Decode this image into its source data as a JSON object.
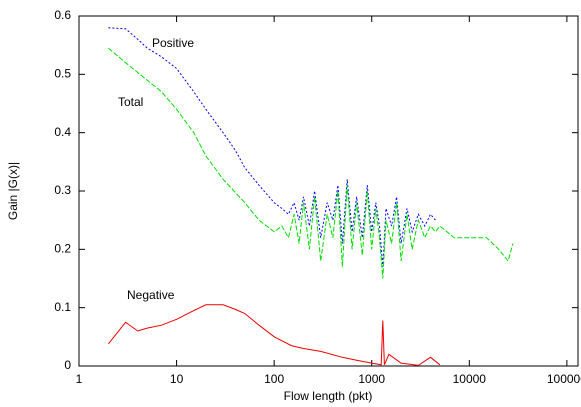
{
  "chart_data": {
    "type": "line",
    "xlabel": "Flow length (pkt)",
    "ylabel": "Gain |G(x)|",
    "xscale": "log",
    "xlim": [
      1,
      130000
    ],
    "xticks": [
      1,
      10,
      100,
      1000,
      10000,
      100000
    ],
    "ylim": [
      0,
      0.6
    ],
    "yticks": [
      0,
      0.1,
      0.2,
      0.3,
      0.4,
      0.5,
      0.6
    ],
    "series": [
      {
        "name": "Positive",
        "color": "#0000ff",
        "dash": "2,2",
        "x": [
          2,
          3,
          4,
          5,
          7,
          10,
          15,
          20,
          30,
          40,
          50,
          70,
          100,
          120,
          140,
          160,
          180,
          200,
          230,
          260,
          300,
          350,
          400,
          450,
          500,
          560,
          630,
          700,
          800,
          900,
          1000,
          1100,
          1200,
          1300,
          1400,
          1600,
          1800,
          2000,
          2300,
          2600,
          3000,
          3500,
          4000,
          4500
        ],
        "values": [
          0.58,
          0.578,
          0.56,
          0.545,
          0.53,
          0.51,
          0.47,
          0.44,
          0.4,
          0.37,
          0.34,
          0.31,
          0.28,
          0.27,
          0.26,
          0.28,
          0.25,
          0.29,
          0.24,
          0.3,
          0.22,
          0.28,
          0.25,
          0.31,
          0.21,
          0.32,
          0.23,
          0.29,
          0.22,
          0.31,
          0.23,
          0.28,
          0.24,
          0.17,
          0.27,
          0.24,
          0.29,
          0.21,
          0.27,
          0.23,
          0.26,
          0.24,
          0.26,
          0.25
        ]
      },
      {
        "name": "Total",
        "color": "#00dd00",
        "dash": "5,2",
        "x": [
          2,
          3,
          5,
          7,
          10,
          15,
          20,
          30,
          50,
          70,
          100,
          120,
          140,
          160,
          180,
          200,
          230,
          260,
          300,
          350,
          400,
          450,
          500,
          560,
          630,
          700,
          800,
          900,
          1000,
          1100,
          1200,
          1300,
          1400,
          1600,
          1800,
          2000,
          2300,
          2600,
          3000,
          3500,
          4000,
          4500,
          5000,
          7000,
          10000,
          15000,
          20000,
          25000,
          28000
        ],
        "values": [
          0.545,
          0.52,
          0.49,
          0.47,
          0.44,
          0.4,
          0.36,
          0.32,
          0.28,
          0.25,
          0.23,
          0.24,
          0.22,
          0.26,
          0.21,
          0.28,
          0.2,
          0.29,
          0.18,
          0.26,
          0.22,
          0.3,
          0.17,
          0.31,
          0.2,
          0.28,
          0.19,
          0.3,
          0.2,
          0.27,
          0.22,
          0.15,
          0.25,
          0.21,
          0.28,
          0.18,
          0.26,
          0.2,
          0.25,
          0.22,
          0.24,
          0.23,
          0.24,
          0.22,
          0.22,
          0.22,
          0.2,
          0.18,
          0.21
        ]
      },
      {
        "name": "Negative",
        "color": "#ee0000",
        "dash": "",
        "x": [
          2,
          3,
          4,
          5,
          7,
          10,
          15,
          20,
          30,
          40,
          50,
          70,
          100,
          150,
          200,
          300,
          500,
          700,
          1000,
          1250,
          1300,
          1350,
          1500,
          2000,
          3000,
          4000,
          5000
        ],
        "values": [
          0.038,
          0.075,
          0.06,
          0.065,
          0.07,
          0.08,
          0.095,
          0.105,
          0.105,
          0.097,
          0.09,
          0.07,
          0.05,
          0.035,
          0.03,
          0.025,
          0.015,
          0.01,
          0.005,
          0.002,
          0.078,
          0.002,
          0.02,
          0.005,
          0.001,
          0.015,
          0.002
        ]
      }
    ]
  }
}
